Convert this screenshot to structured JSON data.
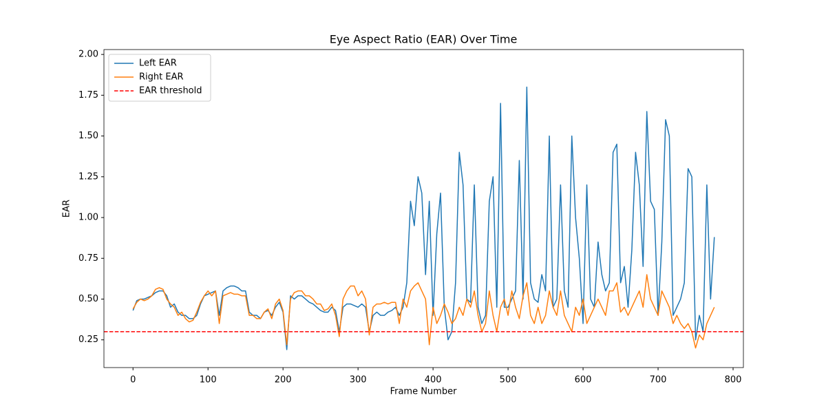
{
  "chart_data": {
    "type": "line",
    "title": "Eye Aspect Ratio (EAR) Over Time",
    "x_label": "Frame Number",
    "y_label": "EAR",
    "xlim": [
      -38.75,
      813.75
    ],
    "ylim": [
      0.08,
      2.03
    ],
    "xticks": [
      0,
      100,
      200,
      300,
      400,
      500,
      600,
      700,
      800
    ],
    "yticks": [
      0.25,
      {
        "value": 0.5,
        "label": "0.50"
      },
      0.75,
      {
        "value": 1,
        "label": "1.00"
      },
      1.25,
      {
        "value": 1.5,
        "label": "1.50"
      },
      1.75,
      {
        "value": 2,
        "label": "2.00"
      }
    ],
    "legend": "upper left",
    "x": [
      0,
      5,
      10,
      15,
      20,
      25,
      30,
      35,
      40,
      45,
      50,
      55,
      60,
      65,
      70,
      75,
      80,
      85,
      90,
      95,
      100,
      105,
      110,
      115,
      120,
      125,
      130,
      135,
      140,
      145,
      150,
      155,
      160,
      165,
      170,
      175,
      180,
      185,
      190,
      195,
      200,
      205,
      210,
      215,
      220,
      225,
      230,
      235,
      240,
      245,
      250,
      255,
      260,
      265,
      270,
      275,
      280,
      285,
      290,
      295,
      300,
      305,
      310,
      315,
      320,
      325,
      330,
      335,
      340,
      345,
      350,
      355,
      360,
      365,
      370,
      375,
      380,
      385,
      390,
      395,
      400,
      405,
      410,
      415,
      420,
      425,
      430,
      435,
      440,
      445,
      450,
      455,
      460,
      465,
      470,
      475,
      480,
      485,
      490,
      495,
      500,
      505,
      510,
      515,
      520,
      525,
      530,
      535,
      540,
      545,
      550,
      555,
      560,
      565,
      570,
      575,
      580,
      585,
      590,
      595,
      600,
      605,
      610,
      615,
      620,
      625,
      630,
      635,
      640,
      645,
      650,
      655,
      660,
      665,
      670,
      675,
      680,
      685,
      690,
      695,
      700,
      705,
      710,
      715,
      720,
      725,
      730,
      735,
      740,
      745,
      750,
      755,
      760,
      765,
      770,
      775
    ],
    "series": [
      {
        "name": "Left EAR",
        "color": "#1f77b4",
        "values": [
          0.43,
          0.49,
          0.5,
          0.5,
          0.51,
          0.52,
          0.54,
          0.55,
          0.55,
          0.52,
          0.45,
          0.47,
          0.42,
          0.4,
          0.4,
          0.38,
          0.38,
          0.4,
          0.47,
          0.52,
          0.53,
          0.54,
          0.55,
          0.4,
          0.55,
          0.57,
          0.58,
          0.58,
          0.57,
          0.55,
          0.55,
          0.42,
          0.4,
          0.4,
          0.38,
          0.42,
          0.43,
          0.4,
          0.45,
          0.48,
          0.42,
          0.19,
          0.52,
          0.5,
          0.52,
          0.52,
          0.5,
          0.48,
          0.47,
          0.45,
          0.43,
          0.42,
          0.42,
          0.45,
          0.43,
          0.3,
          0.45,
          0.47,
          0.47,
          0.46,
          0.45,
          0.47,
          0.45,
          0.3,
          0.4,
          0.42,
          0.4,
          0.4,
          0.42,
          0.43,
          0.45,
          0.4,
          0.45,
          0.6,
          1.1,
          0.95,
          1.25,
          1.15,
          0.65,
          1.1,
          0.4,
          0.9,
          1.15,
          0.45,
          0.25,
          0.3,
          0.6,
          1.4,
          1.2,
          0.5,
          0.48,
          1.2,
          0.45,
          0.35,
          0.4,
          1.1,
          1.25,
          0.45,
          1.7,
          0.45,
          0.45,
          0.5,
          0.55,
          1.35,
          0.5,
          1.8,
          0.6,
          0.5,
          0.48,
          0.65,
          0.55,
          1.5,
          0.45,
          0.5,
          1.2,
          0.55,
          0.45,
          1.5,
          1.0,
          0.75,
          0.35,
          1.2,
          0.5,
          0.45,
          0.85,
          0.65,
          0.55,
          0.6,
          1.4,
          1.45,
          0.6,
          0.7,
          0.45,
          0.8,
          1.4,
          1.2,
          0.7,
          1.65,
          1.1,
          1.05,
          0.4,
          0.85,
          1.6,
          1.5,
          0.4,
          0.45,
          0.5,
          0.6,
          1.3,
          1.25,
          0.25,
          0.4,
          0.3,
          1.2,
          0.5,
          0.88
        ]
      },
      {
        "name": "Right EAR",
        "color": "#ff7f0e",
        "values": [
          0.44,
          0.48,
          0.5,
          0.49,
          0.5,
          0.52,
          0.56,
          0.57,
          0.56,
          0.5,
          0.47,
          0.45,
          0.4,
          0.42,
          0.38,
          0.36,
          0.37,
          0.42,
          0.48,
          0.52,
          0.55,
          0.52,
          0.55,
          0.35,
          0.52,
          0.53,
          0.54,
          0.53,
          0.53,
          0.52,
          0.52,
          0.4,
          0.4,
          0.38,
          0.38,
          0.42,
          0.44,
          0.38,
          0.47,
          0.5,
          0.43,
          0.22,
          0.5,
          0.54,
          0.55,
          0.55,
          0.52,
          0.52,
          0.5,
          0.47,
          0.47,
          0.43,
          0.44,
          0.47,
          0.4,
          0.27,
          0.5,
          0.55,
          0.58,
          0.58,
          0.52,
          0.55,
          0.5,
          0.28,
          0.45,
          0.47,
          0.47,
          0.48,
          0.47,
          0.48,
          0.48,
          0.35,
          0.5,
          0.45,
          0.55,
          0.58,
          0.6,
          0.55,
          0.5,
          0.22,
          0.45,
          0.35,
          0.4,
          0.47,
          0.42,
          0.35,
          0.38,
          0.45,
          0.4,
          0.5,
          0.45,
          0.55,
          0.4,
          0.3,
          0.35,
          0.55,
          0.4,
          0.3,
          0.45,
          0.5,
          0.4,
          0.55,
          0.45,
          0.38,
          0.52,
          0.6,
          0.4,
          0.35,
          0.45,
          0.35,
          0.4,
          0.55,
          0.45,
          0.4,
          0.55,
          0.4,
          0.35,
          0.3,
          0.45,
          0.4,
          0.5,
          0.35,
          0.4,
          0.45,
          0.5,
          0.45,
          0.4,
          0.55,
          0.55,
          0.6,
          0.42,
          0.45,
          0.4,
          0.45,
          0.5,
          0.55,
          0.45,
          0.65,
          0.5,
          0.45,
          0.4,
          0.55,
          0.5,
          0.45,
          0.35,
          0.4,
          0.35,
          0.32,
          0.35,
          0.3,
          0.2,
          0.28,
          0.25,
          0.35,
          0.4,
          0.45
        ]
      }
    ],
    "hlines": [
      {
        "name": "EAR threshold",
        "value": 0.3,
        "color": "#ff0000",
        "dashed": true
      }
    ]
  }
}
